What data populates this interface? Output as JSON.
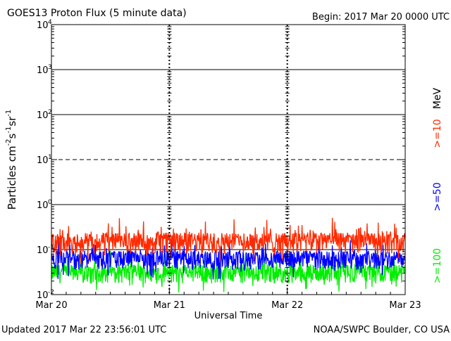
{
  "chart_data": {
    "type": "line",
    "title": "GOES13 Proton Flux (5 minute data)",
    "begin_label": "Begin: 2017 Mar 20 0000 UTC",
    "xlabel": "Universal Time",
    "ylabel_parts": [
      "Particles cm",
      "-2",
      "s",
      "-1",
      "sr",
      "-1"
    ],
    "x_ticks": [
      "Mar 20",
      "Mar 21",
      "Mar 22",
      "Mar 23"
    ],
    "x_range_hours": [
      0,
      72
    ],
    "y_scale": "log",
    "ylim": [
      0.01,
      10000
    ],
    "y_tick_base": "10",
    "y_tick_exps": [
      "-2",
      "-1",
      "0",
      "1",
      "2",
      "3",
      "4"
    ],
    "threshold_lines": [
      {
        "value": 10,
        "style": "dashed"
      },
      {
        "value": 100,
        "style": "solid"
      },
      {
        "value": 1000,
        "style": "solid"
      },
      {
        "value": 1,
        "style": "solid"
      },
      {
        "value": 0.1,
        "style": "solid"
      }
    ],
    "unit_label": "MeV",
    "series": [
      {
        "name": ">=10",
        "color": "#ff2a00",
        "baseline": 0.16,
        "spread": 0.5
      },
      {
        "name": ">=50",
        "color": "#0000ff",
        "baseline": 0.065,
        "spread": 0.45
      },
      {
        "name": ">=100",
        "color": "#00ee00",
        "baseline": 0.032,
        "spread": 0.45
      }
    ]
  },
  "footer": {
    "updated": "Updated 2017 Mar 22 23:56:01 UTC",
    "source": "NOAA/SWPC Boulder, CO USA"
  }
}
